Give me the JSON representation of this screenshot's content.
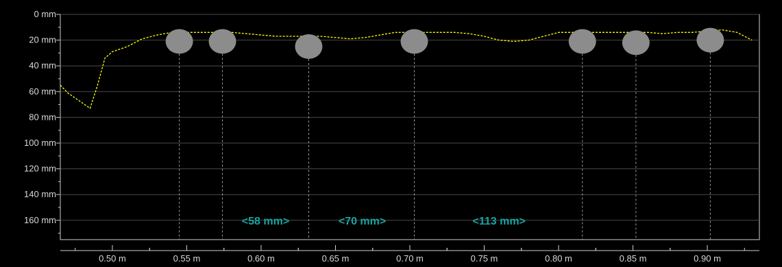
{
  "chart_data": {
    "type": "scatter",
    "title": "",
    "xlabel": "",
    "ylabel": "",
    "xlim": [
      0.465,
      0.935
    ],
    "ylim": [
      0,
      175
    ],
    "y_inverted": true,
    "grid": "horizontal",
    "x_ticks": [
      {
        "value": 0.5,
        "label": "0.50 m"
      },
      {
        "value": 0.55,
        "label": "0.55 m"
      },
      {
        "value": 0.6,
        "label": "0.60 m"
      },
      {
        "value": 0.65,
        "label": "0.65 m"
      },
      {
        "value": 0.7,
        "label": "0.70 m"
      },
      {
        "value": 0.75,
        "label": "0.75 m"
      },
      {
        "value": 0.8,
        "label": "0.80 m"
      },
      {
        "value": 0.85,
        "label": "0.85 m"
      },
      {
        "value": 0.9,
        "label": "0.90 m"
      }
    ],
    "y_ticks": [
      {
        "value": 0,
        "label": "0 mm"
      },
      {
        "value": 20,
        "label": "20 mm"
      },
      {
        "value": 40,
        "label": "40 mm"
      },
      {
        "value": 60,
        "label": "60 mm"
      },
      {
        "value": 80,
        "label": "80 mm"
      },
      {
        "value": 100,
        "label": "100 mm"
      },
      {
        "value": 120,
        "label": "120 mm"
      },
      {
        "value": 140,
        "label": "140 mm"
      },
      {
        "value": 160,
        "label": "160 mm"
      }
    ],
    "surface_line": {
      "color": "#ffff00",
      "style": "dashed",
      "x": [
        0.465,
        0.47,
        0.475,
        0.48,
        0.485,
        0.49,
        0.495,
        0.5,
        0.505,
        0.51,
        0.515,
        0.52,
        0.53,
        0.54,
        0.55,
        0.56,
        0.57,
        0.58,
        0.59,
        0.6,
        0.61,
        0.62,
        0.63,
        0.64,
        0.65,
        0.66,
        0.67,
        0.68,
        0.69,
        0.7,
        0.71,
        0.72,
        0.73,
        0.74,
        0.75,
        0.76,
        0.77,
        0.78,
        0.79,
        0.8,
        0.81,
        0.82,
        0.83,
        0.84,
        0.85,
        0.86,
        0.87,
        0.88,
        0.89,
        0.9,
        0.91,
        0.92,
        0.93
      ],
      "y": [
        55,
        61,
        65,
        69,
        73,
        55,
        34,
        29,
        27,
        25,
        22,
        19,
        16,
        14,
        14,
        14,
        14,
        14,
        15,
        16,
        17,
        17,
        17,
        17,
        18,
        19,
        18,
        16,
        14,
        14,
        14,
        14,
        14,
        15,
        17,
        20,
        21,
        20,
        17,
        14,
        14,
        14,
        14,
        14,
        14,
        14,
        15,
        14,
        14,
        13,
        12,
        14,
        20
      ]
    },
    "objects": [
      {
        "x": 0.545,
        "y": 21
      },
      {
        "x": 0.574,
        "y": 21
      },
      {
        "x": 0.632,
        "y": 25
      },
      {
        "x": 0.703,
        "y": 21
      },
      {
        "x": 0.816,
        "y": 21
      },
      {
        "x": 0.852,
        "y": 22
      },
      {
        "x": 0.902,
        "y": 20
      }
    ],
    "object_color": "#8c8c8c",
    "annotations": [
      {
        "text": "<58 mm>",
        "x": 0.603
      },
      {
        "text": "<70 mm>",
        "x": 0.668
      },
      {
        "text": "<113 mm>",
        "x": 0.76
      }
    ],
    "annotation_color": "#1aa3a3",
    "annotation_y": 160
  }
}
